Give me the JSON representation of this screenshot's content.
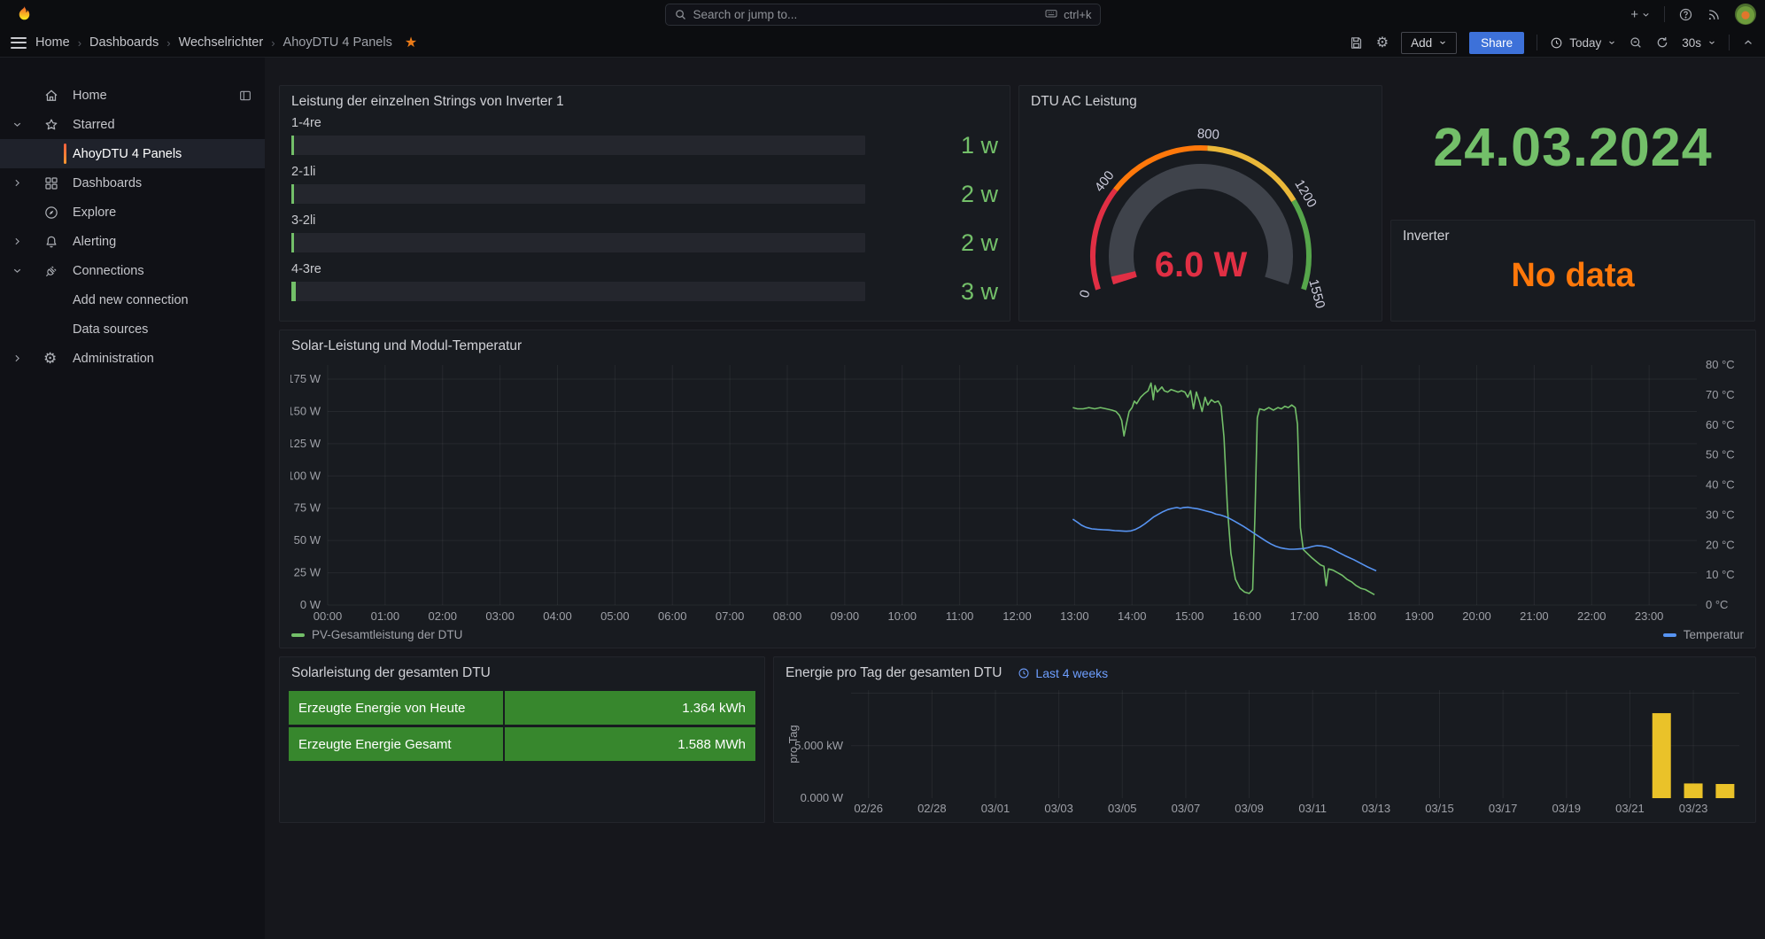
{
  "topnav": {
    "search": {
      "placeholder": "Search or jump to...",
      "shortcut": "ctrl+k"
    }
  },
  "breadcrumbs": [
    "Home",
    "Dashboards",
    "Wechselrichter",
    "AhoyDTU 4 Panels"
  ],
  "toolbar": {
    "add_label": "Add",
    "share_label": "Share",
    "time_label": "Today",
    "refresh_interval": "30s"
  },
  "sidebar": {
    "items": [
      {
        "label": "Home",
        "icon": "home-icon",
        "indent": 0,
        "chevron": null,
        "active": false,
        "dock": true
      },
      {
        "label": "Starred",
        "icon": "star-icon",
        "indent": 0,
        "chevron": "down",
        "active": false
      },
      {
        "label": "AhoyDTU 4 Panels",
        "icon": null,
        "indent": 1,
        "chevron": null,
        "active": true
      },
      {
        "label": "Dashboards",
        "icon": "apps-icon",
        "indent": 0,
        "chevron": "right",
        "active": false
      },
      {
        "label": "Explore",
        "icon": "compass-icon",
        "indent": 0,
        "chevron": null,
        "active": false
      },
      {
        "label": "Alerting",
        "icon": "bell-icon",
        "indent": 0,
        "chevron": "right",
        "active": false
      },
      {
        "label": "Connections",
        "icon": "plug-icon",
        "indent": 0,
        "chevron": "down",
        "active": false
      },
      {
        "label": "Add new connection",
        "icon": null,
        "indent": 1,
        "chevron": null,
        "active": false
      },
      {
        "label": "Data sources",
        "icon": null,
        "indent": 1,
        "chevron": null,
        "active": false
      },
      {
        "label": "Administration",
        "icon": "cog-icon",
        "indent": 0,
        "chevron": "right",
        "active": false
      }
    ]
  },
  "panels": {
    "strings": {
      "title": "Leistung der einzelnen Strings von Inverter 1",
      "max_w": 400,
      "rows": [
        {
          "label": "1-4re",
          "value_w": 1,
          "display": "1 w"
        },
        {
          "label": "2-1li",
          "value_w": 2,
          "display": "2 w"
        },
        {
          "label": "3-2li",
          "value_w": 2,
          "display": "2 w"
        },
        {
          "label": "4-3re",
          "value_w": 3,
          "display": "3 w"
        }
      ],
      "value_color": "#73BF69"
    },
    "gauge": {
      "title": "DTU AC Leistung",
      "value": 6.0,
      "display": "6.0 W",
      "min": 0,
      "max": 1550,
      "ticks": [
        0,
        400,
        800,
        1200,
        1550
      ],
      "segments": [
        {
          "from": 0,
          "to": 400,
          "color": "#E02F44"
        },
        {
          "from": 400,
          "to": 800,
          "color": "#FF780A"
        },
        {
          "from": 800,
          "to": 1200,
          "color": "#EAB839"
        },
        {
          "from": 1200,
          "to": 1550,
          "color": "#56A64B"
        }
      ],
      "value_color": "#E02F44"
    },
    "date": {
      "value": "24.03.2024",
      "color": "#73BF69"
    },
    "inverter": {
      "title": "Inverter",
      "status": "No data",
      "color": "#FF780A"
    },
    "table": {
      "title": "Solarleistung der gesamten DTU",
      "cell_color": "#37872D",
      "rows": [
        {
          "label": "Erzeugte Energie von Heute",
          "value": "1.364 kWh"
        },
        {
          "label": "Erzeugte Energie Gesamt",
          "value": "1.588 MWh"
        }
      ]
    }
  },
  "chart_data": [
    {
      "type": "line",
      "title": "Solar-Leistung und Modul-Temperatur",
      "xlim": [
        0,
        23.83
      ],
      "x_ticks": [
        "00:00",
        "01:00",
        "02:00",
        "03:00",
        "04:00",
        "05:00",
        "06:00",
        "07:00",
        "08:00",
        "09:00",
        "10:00",
        "11:00",
        "12:00",
        "13:00",
        "14:00",
        "15:00",
        "16:00",
        "17:00",
        "18:00",
        "19:00",
        "20:00",
        "21:00",
        "22:00",
        "23:00"
      ],
      "left_axis": {
        "unit": "W",
        "ticks": [
          0,
          25,
          50,
          75,
          100,
          125,
          150,
          175
        ],
        "scale_max": 186
      },
      "right_axis": {
        "unit": "°C",
        "ticks": [
          0,
          10,
          20,
          30,
          40,
          50,
          60,
          70,
          80
        ],
        "scale_max": 80
      },
      "legend": [
        {
          "label": "PV-Gesamtleistung der DTU",
          "color": "#73BF69"
        },
        {
          "label": "Temperatur",
          "color": "#5794F2"
        }
      ],
      "series": [
        {
          "name": "PV-Gesamtleistung der DTU",
          "axis": "left",
          "color": "#73BF69",
          "points": [
            [
              12.97,
              153
            ],
            [
              13.05,
              152
            ],
            [
              13.15,
              152
            ],
            [
              13.25,
              153
            ],
            [
              13.35,
              152
            ],
            [
              13.45,
              153
            ],
            [
              13.55,
              152
            ],
            [
              13.65,
              151
            ],
            [
              13.72,
              150
            ],
            [
              13.78,
              147
            ],
            [
              13.82,
              143
            ],
            [
              13.86,
              131
            ],
            [
              13.9,
              140
            ],
            [
              13.95,
              150
            ],
            [
              14.0,
              153
            ],
            [
              14.04,
              158
            ],
            [
              14.08,
              156
            ],
            [
              14.15,
              161
            ],
            [
              14.22,
              164
            ],
            [
              14.28,
              166
            ],
            [
              14.33,
              172
            ],
            [
              14.37,
              159
            ],
            [
              14.4,
              170
            ],
            [
              14.44,
              165
            ],
            [
              14.48,
              167
            ],
            [
              14.52,
              169
            ],
            [
              14.56,
              166
            ],
            [
              14.62,
              165
            ],
            [
              14.68,
              167
            ],
            [
              14.74,
              166
            ],
            [
              14.8,
              165
            ],
            [
              14.86,
              166
            ],
            [
              14.92,
              165
            ],
            [
              14.97,
              161
            ],
            [
              15.02,
              166
            ],
            [
              15.07,
              152
            ],
            [
              15.12,
              165
            ],
            [
              15.17,
              158
            ],
            [
              15.22,
              150
            ],
            [
              15.27,
              161
            ],
            [
              15.32,
              155
            ],
            [
              15.38,
              159
            ],
            [
              15.44,
              157
            ],
            [
              15.5,
              158
            ],
            [
              15.55,
              154
            ],
            [
              15.6,
              130
            ],
            [
              15.66,
              75
            ],
            [
              15.72,
              40
            ],
            [
              15.8,
              20
            ],
            [
              15.88,
              13
            ],
            [
              15.96,
              10
            ],
            [
              16.04,
              9
            ],
            [
              16.1,
              12
            ],
            [
              16.14,
              70
            ],
            [
              16.18,
              145
            ],
            [
              16.22,
              152
            ],
            [
              16.3,
              151
            ],
            [
              16.38,
              153
            ],
            [
              16.46,
              151
            ],
            [
              16.54,
              153
            ],
            [
              16.6,
              152
            ],
            [
              16.66,
              154
            ],
            [
              16.72,
              153
            ],
            [
              16.78,
              155
            ],
            [
              16.84,
              153
            ],
            [
              16.88,
              140
            ],
            [
              16.93,
              60
            ],
            [
              16.98,
              43
            ],
            [
              17.05,
              40
            ],
            [
              17.12,
              37
            ],
            [
              17.2,
              34
            ],
            [
              17.28,
              31
            ],
            [
              17.34,
              30
            ],
            [
              17.38,
              15
            ],
            [
              17.42,
              28
            ],
            [
              17.5,
              27
            ],
            [
              17.58,
              25
            ],
            [
              17.66,
              23
            ],
            [
              17.74,
              20
            ],
            [
              17.82,
              18
            ],
            [
              17.9,
              15
            ],
            [
              17.98,
              13
            ],
            [
              18.06,
              12
            ],
            [
              18.14,
              10
            ],
            [
              18.22,
              8
            ]
          ]
        },
        {
          "name": "Temperatur",
          "axis": "right",
          "color": "#5794F2",
          "points": [
            [
              12.97,
              28.6
            ],
            [
              13.05,
              27.6
            ],
            [
              13.12,
              26.6
            ],
            [
              13.2,
              25.9
            ],
            [
              13.3,
              25.4
            ],
            [
              13.4,
              25.2
            ],
            [
              13.5,
              25.1
            ],
            [
              13.6,
              25.0
            ],
            [
              13.7,
              24.8
            ],
            [
              13.8,
              24.7
            ],
            [
              13.9,
              24.6
            ],
            [
              13.98,
              24.7
            ],
            [
              14.06,
              25.2
            ],
            [
              14.14,
              26.0
            ],
            [
              14.22,
              27.0
            ],
            [
              14.3,
              28.2
            ],
            [
              14.38,
              29.4
            ],
            [
              14.46,
              30.3
            ],
            [
              14.54,
              31.1
            ],
            [
              14.62,
              31.8
            ],
            [
              14.7,
              32.2
            ],
            [
              14.78,
              32.5
            ],
            [
              14.84,
              32.2
            ],
            [
              14.9,
              32.5
            ],
            [
              14.98,
              32.6
            ],
            [
              15.06,
              32.3
            ],
            [
              15.14,
              32.1
            ],
            [
              15.22,
              31.7
            ],
            [
              15.3,
              31.3
            ],
            [
              15.38,
              30.9
            ],
            [
              15.46,
              30.3
            ],
            [
              15.54,
              30.0
            ],
            [
              15.62,
              29.5
            ],
            [
              15.7,
              28.8
            ],
            [
              15.78,
              28.0
            ],
            [
              15.86,
              27.1
            ],
            [
              15.94,
              26.2
            ],
            [
              16.02,
              25.2
            ],
            [
              16.1,
              24.2
            ],
            [
              16.18,
              23.2
            ],
            [
              16.26,
              22.2
            ],
            [
              16.34,
              21.2
            ],
            [
              16.42,
              20.3
            ],
            [
              16.5,
              19.6
            ],
            [
              16.58,
              19.1
            ],
            [
              16.66,
              18.8
            ],
            [
              16.74,
              18.6
            ],
            [
              16.82,
              18.6
            ],
            [
              16.9,
              18.7
            ],
            [
              16.98,
              18.8
            ],
            [
              17.06,
              19.1
            ],
            [
              17.14,
              19.5
            ],
            [
              17.22,
              19.8
            ],
            [
              17.3,
              19.7
            ],
            [
              17.38,
              19.4
            ],
            [
              17.46,
              18.9
            ],
            [
              17.54,
              18.1
            ],
            [
              17.62,
              17.3
            ],
            [
              17.7,
              16.5
            ],
            [
              17.78,
              15.8
            ],
            [
              17.86,
              15.1
            ],
            [
              17.94,
              14.3
            ],
            [
              18.02,
              13.5
            ],
            [
              18.1,
              12.7
            ],
            [
              18.18,
              12.0
            ],
            [
              18.25,
              11.4
            ]
          ]
        }
      ]
    },
    {
      "type": "bar",
      "title": "Energie pro Tag der gesamten DTU",
      "time_range_label": "Last 4 weeks",
      "ylabel": "pro Tag",
      "ylim": [
        0,
        10.3
      ],
      "y_ticks": [
        {
          "v": 0,
          "label": "0.000 W"
        },
        {
          "v": 5,
          "label": "5.000 kW"
        }
      ],
      "bar_color": "#EAC229",
      "x_tick_every": 2,
      "categories": [
        "02/26",
        "02/27",
        "02/28",
        "02/29",
        "03/01",
        "03/02",
        "03/03",
        "03/04",
        "03/05",
        "03/06",
        "03/07",
        "03/08",
        "03/09",
        "03/10",
        "03/11",
        "03/12",
        "03/13",
        "03/14",
        "03/15",
        "03/16",
        "03/17",
        "03/18",
        "03/19",
        "03/20",
        "03/21",
        "03/22",
        "03/23",
        "03/24"
      ],
      "values": [
        0,
        0,
        0,
        0,
        0,
        0,
        0,
        0,
        0,
        0,
        0,
        0,
        0,
        0,
        0,
        0,
        0,
        0,
        0,
        0,
        0,
        0,
        0,
        0,
        0,
        8.1,
        1.4,
        1.35
      ]
    }
  ],
  "colors": {
    "accent_blue": "#3D71D9",
    "link_blue": "#6E9FFF",
    "green": "#73BF69",
    "orange": "#FF780A",
    "red": "#E02F44",
    "yellow": "#EAC229",
    "table_green": "#37872D"
  }
}
